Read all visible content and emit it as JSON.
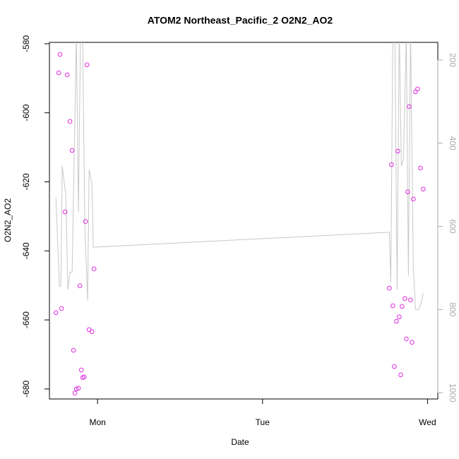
{
  "chart_data": {
    "type": "scatter",
    "title": "ATOM2 Northeast_Pacific_2 O2N2_AO2",
    "xlabel": "Date",
    "ylabel": "O2N2_AO2",
    "xlim": [
      -7,
      49.5
    ],
    "xticks": [
      {
        "value": 0,
        "label": "Mon"
      },
      {
        "value": 24,
        "label": "Tue"
      },
      {
        "value": 48,
        "label": "Wed"
      }
    ],
    "ylim": [
      -682.9,
      -579.6
    ],
    "yticks": [
      -680,
      -660,
      -640,
      -620,
      -600,
      -580
    ],
    "y2lim": [
      1015,
      157.5
    ],
    "y2ticks": [
      200,
      400,
      600,
      800,
      1000
    ],
    "y2color": "#aaaaaa",
    "series": [
      {
        "type": "scatter",
        "color": "#e02be0",
        "x": [
          -6.06,
          -5.65,
          -5.45,
          -5.24,
          -4.73,
          -4.42,
          -4.01,
          -3.7,
          -3.49,
          -3.29,
          -3.08,
          -2.78,
          -2.57,
          -2.36,
          -2.16,
          -1.95,
          -1.75,
          -1.54,
          -1.23,
          -0.82,
          -0.51,
          42.45,
          42.76,
          42.96,
          43.17,
          43.48,
          43.68,
          43.89,
          44.1,
          44.3,
          44.71,
          44.92,
          45.12,
          45.33,
          45.53,
          45.74,
          45.94,
          46.25,
          46.56,
          46.97,
          47.38
        ],
        "values": [
          -657.9,
          -588.4,
          -583.1,
          -656.7,
          -628.7,
          -589.0,
          -602.5,
          -610.9,
          -668.8,
          -681.2,
          -680.0,
          -679.8,
          -650.1,
          -674.5,
          -676.7,
          -676.5,
          -631.5,
          -586.1,
          -662.8,
          -663.4,
          -645.2,
          -650.8,
          -615.0,
          -655.9,
          -673.5,
          -660.4,
          -611.1,
          -659.1,
          -675.9,
          -656.1,
          -653.8,
          -665.5,
          -622.9,
          -598.2,
          -654.2,
          -666.5,
          -625.0,
          -593.9,
          -593.1,
          -616.0,
          -622.1
        ]
      },
      {
        "type": "line",
        "axis": "y2",
        "color": "#c8c8c8",
        "x": [
          -6.06,
          -5.55,
          -5.34,
          -5.14,
          -4.63,
          -4.32,
          -4.01,
          -3.7,
          -3.08,
          -2.78,
          -2.47,
          -2.16,
          -1.85,
          -1.44,
          -1.23,
          -0.82,
          -0.62,
          42.45,
          42.66,
          42.96,
          43.27,
          43.58,
          43.89,
          44.2,
          44.51,
          44.92,
          45.22,
          45.53,
          45.94,
          46.25,
          46.66,
          47.07,
          47.38
        ],
        "values": [
          531,
          744,
          744,
          455,
          523,
          752,
          710,
          710,
          141,
          565,
          124,
          158,
          599,
          778,
          463,
          497,
          650,
          614,
          735,
          124,
          158,
          752,
          124,
          455,
          438,
          141,
          718,
          124,
          701,
          800,
          800,
          786,
          760
        ]
      }
    ]
  }
}
